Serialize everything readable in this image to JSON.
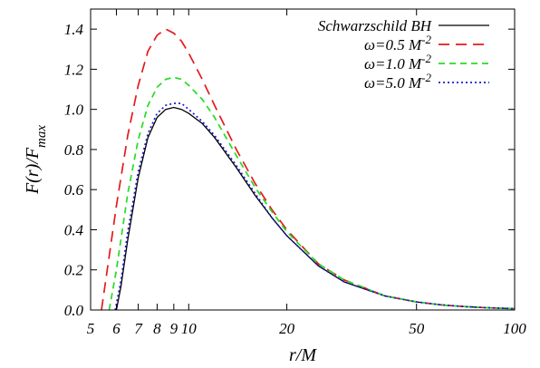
{
  "chart_data": {
    "type": "line",
    "xlabel": "r/M",
    "ylabel": "F(r)/F_max",
    "x_scale": "log",
    "xlim": [
      5,
      100
    ],
    "ylim": [
      0,
      1.5
    ],
    "x_ticks": [
      {
        "value": 5,
        "label": "5"
      },
      {
        "value": 6,
        "label": "6"
      },
      {
        "value": 7,
        "label": "7"
      },
      {
        "value": 8,
        "label": "8"
      },
      {
        "value": 9,
        "label": "9"
      },
      {
        "value": 10,
        "label": "10"
      },
      {
        "value": 20,
        "label": "20"
      },
      {
        "value": 50,
        "label": "50"
      },
      {
        "value": 100,
        "label": "100"
      }
    ],
    "y_ticks": [
      {
        "value": 0,
        "label": "0.0"
      },
      {
        "value": 0.2,
        "label": "0.2"
      },
      {
        "value": 0.4,
        "label": "0.4"
      },
      {
        "value": 0.6,
        "label": "0.6"
      },
      {
        "value": 0.8,
        "label": "0.8"
      },
      {
        "value": 1.0,
        "label": "1.0"
      },
      {
        "value": 1.2,
        "label": "1.2"
      },
      {
        "value": 1.4,
        "label": "1.4"
      }
    ],
    "legend_position": "top-right",
    "grid": false,
    "series": [
      {
        "name": "Schwarzschild BH",
        "color": "#000000",
        "dash": "solid",
        "x": [
          6.0,
          6.2,
          6.5,
          7.0,
          7.5,
          8.0,
          8.5,
          9.0,
          9.5,
          10,
          11,
          12,
          14,
          16,
          18,
          20,
          25,
          30,
          40,
          50,
          60,
          70,
          80,
          90,
          100
        ],
        "y": [
          0.0,
          0.12,
          0.35,
          0.66,
          0.86,
          0.96,
          1.0,
          1.01,
          1.0,
          0.98,
          0.93,
          0.86,
          0.71,
          0.57,
          0.46,
          0.37,
          0.22,
          0.14,
          0.07,
          0.04,
          0.025,
          0.017,
          0.012,
          0.009,
          0.007
        ]
      },
      {
        "name": "ω=0.5 M^-2",
        "color": "#e41a1c",
        "dash": "long",
        "x": [
          5.4,
          5.6,
          6.0,
          6.5,
          7.0,
          7.5,
          8.0,
          8.5,
          9.0,
          9.5,
          10,
          11,
          12,
          14,
          16,
          18,
          20,
          25,
          30,
          40,
          50,
          60,
          70,
          80,
          90,
          100
        ],
        "y": [
          0.0,
          0.18,
          0.52,
          0.87,
          1.12,
          1.29,
          1.37,
          1.4,
          1.38,
          1.34,
          1.28,
          1.15,
          1.02,
          0.8,
          0.63,
          0.5,
          0.4,
          0.23,
          0.15,
          0.07,
          0.04,
          0.025,
          0.017,
          0.012,
          0.009,
          0.007
        ]
      },
      {
        "name": "ω=1.0 M^-2",
        "color": "#22dd22",
        "dash": "medium",
        "x": [
          5.7,
          6.0,
          6.5,
          7.0,
          7.5,
          8.0,
          8.5,
          9.0,
          9.5,
          10,
          11,
          12,
          14,
          16,
          18,
          20,
          25,
          30,
          40,
          50,
          60,
          70,
          80,
          90,
          100
        ],
        "y": [
          0.0,
          0.2,
          0.58,
          0.85,
          1.02,
          1.11,
          1.15,
          1.16,
          1.15,
          1.12,
          1.05,
          0.96,
          0.77,
          0.61,
          0.49,
          0.39,
          0.23,
          0.15,
          0.07,
          0.04,
          0.025,
          0.017,
          0.012,
          0.009,
          0.007
        ]
      },
      {
        "name": "ω=5.0 M^-2",
        "color": "#1a1acc",
        "dash": "dotted",
        "x": [
          5.95,
          6.2,
          6.5,
          7.0,
          7.5,
          8.0,
          8.5,
          9.0,
          9.5,
          10,
          11,
          12,
          14,
          16,
          18,
          20,
          25,
          30,
          40,
          50,
          60,
          70,
          80,
          90,
          100
        ],
        "y": [
          0.0,
          0.15,
          0.39,
          0.69,
          0.88,
          0.98,
          1.02,
          1.03,
          1.03,
          1.0,
          0.94,
          0.87,
          0.72,
          0.58,
          0.46,
          0.37,
          0.22,
          0.14,
          0.07,
          0.04,
          0.025,
          0.017,
          0.012,
          0.009,
          0.007
        ]
      }
    ],
    "legend": [
      {
        "base": "Schwarzschild BH",
        "exp": ""
      },
      {
        "base": "ω=0.5 M",
        "exp": "-2"
      },
      {
        "base": "ω=1.0 M",
        "exp": "-2"
      },
      {
        "base": "ω=5.0 M",
        "exp": "-2"
      }
    ]
  }
}
